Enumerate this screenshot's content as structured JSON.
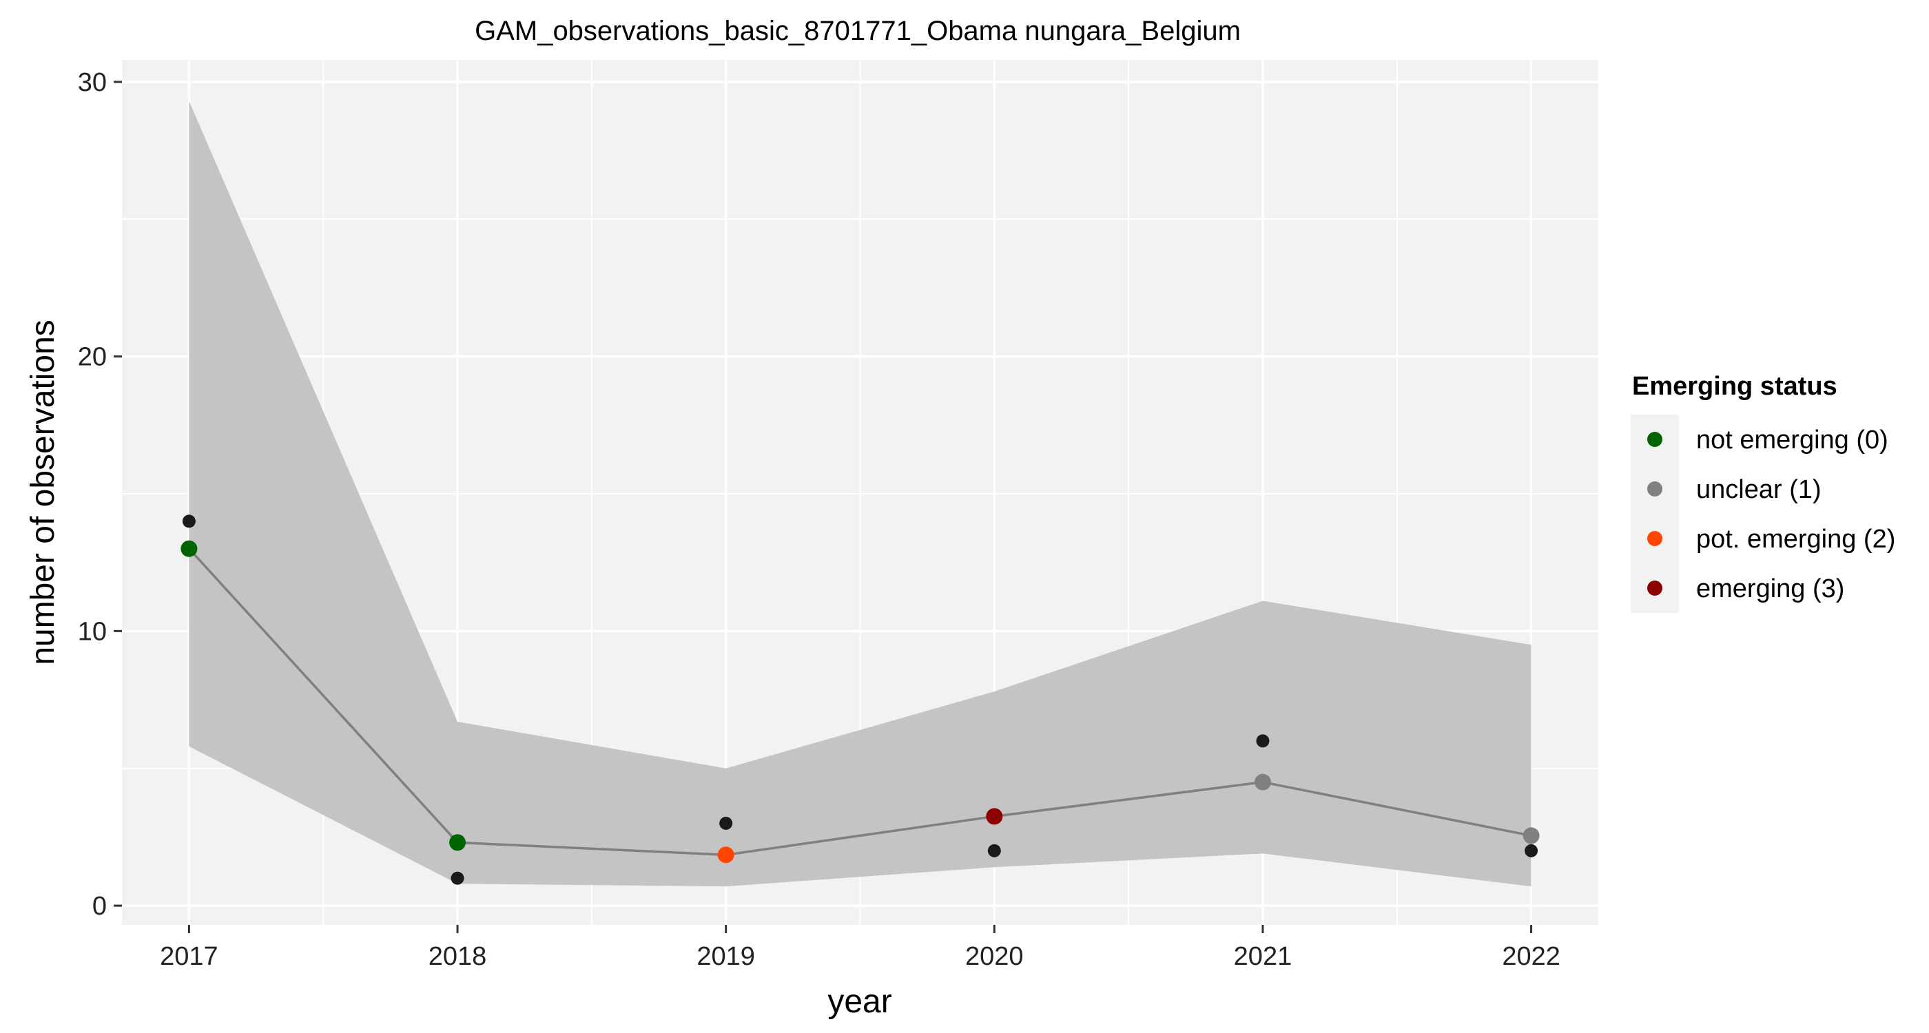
{
  "chart_data": {
    "type": "line",
    "title": "GAM_observations_basic_8701771_Obama nungara_Belgium",
    "xlabel": "year",
    "ylabel": "number of observations",
    "x_ticks": [
      "2017",
      "2018",
      "2019",
      "2020",
      "2021",
      "2022"
    ],
    "y_ticks": [
      "0",
      "10",
      "20",
      "30"
    ],
    "xlim": [
      2016.75,
      2022.25
    ],
    "ylim": [
      -0.7,
      30.8
    ],
    "grid": true,
    "legend_position": "right",
    "legend": {
      "title": "Emerging status",
      "items": [
        {
          "label": "not emerging (0)",
          "color": "#006400"
        },
        {
          "label": "unclear (1)",
          "color": "#808080"
        },
        {
          "label": "pot. emerging (2)",
          "color": "#FF4500"
        },
        {
          "label": "emerging (3)",
          "color": "#8B0000"
        }
      ]
    },
    "observed": {
      "x": [
        2017,
        2018,
        2019,
        2020,
        2021,
        2022
      ],
      "y": [
        14,
        1,
        3,
        2,
        6,
        2
      ],
      "color": "#1a1a1a"
    },
    "fitted": {
      "x": [
        2017,
        2018,
        2019,
        2020,
        2021,
        2022
      ],
      "y": [
        13.0,
        2.3,
        1.85,
        3.25,
        4.5,
        2.55
      ],
      "status_index": [
        0,
        0,
        2,
        3,
        1,
        1
      ],
      "line_color": "#808080"
    },
    "confidence_band": {
      "x": [
        2017,
        2018,
        2019,
        2020,
        2021,
        2022
      ],
      "lower": [
        5.8,
        0.8,
        0.7,
        1.4,
        1.9,
        0.7
      ],
      "upper": [
        29.3,
        6.7,
        5.0,
        7.8,
        11.1,
        9.5
      ],
      "color": "#C4C4C4"
    },
    "colors": {
      "panel_background": "#F2F2F2",
      "grid": "#FFFFFF",
      "legend_key_background": "#F2F2F2"
    }
  }
}
